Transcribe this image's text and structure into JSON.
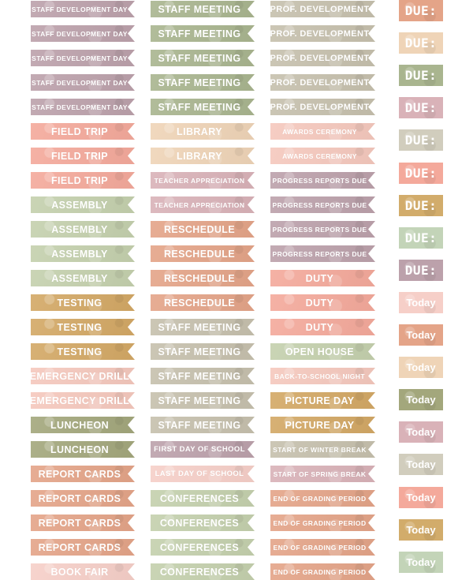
{
  "palette": {
    "mauve": "#bca1ab",
    "sage": "#a9b58f",
    "greige": "#c6c0ad",
    "peach": "#f4a99b",
    "blush": "#f5c8bd",
    "cream": "#efd4b7",
    "rose": "#d9b2b8",
    "lightsage": "#c4d0ad",
    "mustard": "#d3a865",
    "terracotta": "#e4a488",
    "palepink": "#f6cfc8",
    "mint": "#c3d4b8",
    "olive": "#a3a77c",
    "lightgreige": "#d1cdbd",
    "gold": "#d2ac6b"
  },
  "columns": [
    {
      "items": [
        {
          "label": "STAFF DEVELOPMENT DAY",
          "color": "mauve",
          "size": "xs"
        },
        {
          "label": "STAFF DEVELOPMENT DAY",
          "color": "mauve",
          "size": "xs"
        },
        {
          "label": "STAFF DEVELOPMENT DAY",
          "color": "mauve",
          "size": "xs"
        },
        {
          "label": "STAFF DEVELOPMENT DAY",
          "color": "mauve",
          "size": "xs"
        },
        {
          "label": "STAFF DEVELOPMENT DAY",
          "color": "mauve",
          "size": "xs"
        },
        {
          "label": "FIELD TRIP",
          "color": "peach",
          "size": "l"
        },
        {
          "label": "FIELD TRIP",
          "color": "peach",
          "size": "l"
        },
        {
          "label": "FIELD TRIP",
          "color": "peach",
          "size": "l"
        },
        {
          "label": "ASSEMBLY",
          "color": "lightsage",
          "size": "l"
        },
        {
          "label": "ASSEMBLY",
          "color": "lightsage",
          "size": "l"
        },
        {
          "label": "ASSEMBLY",
          "color": "lightsage",
          "size": "l"
        },
        {
          "label": "ASSEMBLY",
          "color": "lightsage",
          "size": "l"
        },
        {
          "label": "TESTING",
          "color": "mustard",
          "size": "l"
        },
        {
          "label": "TESTING",
          "color": "mustard",
          "size": "l"
        },
        {
          "label": "TESTING",
          "color": "mustard",
          "size": "l"
        },
        {
          "label": "EMERGENCY DRILL",
          "color": "blush",
          "size": "l"
        },
        {
          "label": "EMERGENCY DRILL",
          "color": "blush",
          "size": "l"
        },
        {
          "label": "LUNCHEON",
          "color": "olive",
          "size": "l"
        },
        {
          "label": "LUNCHEON",
          "color": "olive",
          "size": "l"
        },
        {
          "label": "REPORT CARDS",
          "color": "terracotta",
          "size": "l"
        },
        {
          "label": "REPORT CARDS",
          "color": "terracotta",
          "size": "l"
        },
        {
          "label": "REPORT CARDS",
          "color": "terracotta",
          "size": "l"
        },
        {
          "label": "REPORT CARDS",
          "color": "terracotta",
          "size": "l"
        },
        {
          "label": "BOOK FAIR",
          "color": "palepink",
          "size": "l"
        }
      ]
    },
    {
      "items": [
        {
          "label": "STAFF MEETING",
          "color": "sage",
          "size": "l"
        },
        {
          "label": "STAFF MEETING",
          "color": "sage",
          "size": "l"
        },
        {
          "label": "STAFF MEETING",
          "color": "sage",
          "size": "l"
        },
        {
          "label": "STAFF MEETING",
          "color": "sage",
          "size": "l"
        },
        {
          "label": "STAFF MEETING",
          "color": "sage",
          "size": "l"
        },
        {
          "label": "LIBRARY",
          "color": "cream",
          "size": "l"
        },
        {
          "label": "LIBRARY",
          "color": "cream",
          "size": "l"
        },
        {
          "label": "TEACHER APPRECIATION",
          "color": "rose",
          "size": "xs"
        },
        {
          "label": "TEACHER APPRECIATION",
          "color": "rose",
          "size": "xs"
        },
        {
          "label": "RESCHEDULE",
          "color": "terracotta",
          "size": "l"
        },
        {
          "label": "RESCHEDULE",
          "color": "terracotta",
          "size": "l"
        },
        {
          "label": "RESCHEDULE",
          "color": "terracotta",
          "size": "l"
        },
        {
          "label": "RESCHEDULE",
          "color": "terracotta",
          "size": "l"
        },
        {
          "label": "STAFF MEETING",
          "color": "greige",
          "size": "l"
        },
        {
          "label": "STAFF MEETING",
          "color": "greige",
          "size": "l"
        },
        {
          "label": "STAFF MEETING",
          "color": "greige",
          "size": "l"
        },
        {
          "label": "STAFF MEETING",
          "color": "greige",
          "size": "l"
        },
        {
          "label": "STAFF MEETING",
          "color": "greige",
          "size": "l"
        },
        {
          "label": "FIRST DAY OF SCHOOL",
          "color": "mauve",
          "size": "s"
        },
        {
          "label": "LAST DAY OF SCHOOL",
          "color": "palepink",
          "size": "s"
        },
        {
          "label": "CONFERENCES",
          "color": "lightsage",
          "size": "l"
        },
        {
          "label": "CONFERENCES",
          "color": "lightsage",
          "size": "l"
        },
        {
          "label": "CONFERENCES",
          "color": "lightsage",
          "size": "l"
        },
        {
          "label": "CONFERENCES",
          "color": "lightsage",
          "size": "l"
        }
      ]
    },
    {
      "items": [
        {
          "label": "PROF. DEVELOPMENT",
          "color": "greige",
          "size": "m"
        },
        {
          "label": "PROF. DEVELOPMENT",
          "color": "greige",
          "size": "m"
        },
        {
          "label": "PROF. DEVELOPMENT",
          "color": "greige",
          "size": "m"
        },
        {
          "label": "PROF. DEVELOPMENT",
          "color": "greige",
          "size": "m"
        },
        {
          "label": "PROF. DEVELOPMENT",
          "color": "greige",
          "size": "m"
        },
        {
          "label": "AWARDS CEREMONY",
          "color": "blush",
          "size": "xs"
        },
        {
          "label": "AWARDS CEREMONY",
          "color": "blush",
          "size": "xs"
        },
        {
          "label": "PROGRESS REPORTS DUE",
          "color": "mauve",
          "size": "xs"
        },
        {
          "label": "PROGRESS REPORTS DUE",
          "color": "mauve",
          "size": "xs"
        },
        {
          "label": "PROGRESS REPORTS DUE",
          "color": "mauve",
          "size": "xs"
        },
        {
          "label": "PROGRESS REPORTS DUE",
          "color": "mauve",
          "size": "xs"
        },
        {
          "label": "DUTY",
          "color": "peach",
          "size": "l"
        },
        {
          "label": "DUTY",
          "color": "peach",
          "size": "l"
        },
        {
          "label": "DUTY",
          "color": "peach",
          "size": "l"
        },
        {
          "label": "OPEN HOUSE",
          "color": "lightsage",
          "size": "l"
        },
        {
          "label": "BACK-TO-SCHOOL NIGHT",
          "color": "blush",
          "size": "xs"
        },
        {
          "label": "PICTURE DAY",
          "color": "mustard",
          "size": "l"
        },
        {
          "label": "PICTURE DAY",
          "color": "mustard",
          "size": "l"
        },
        {
          "label": "START OF WINTER BREAK",
          "color": "greige",
          "size": "xs"
        },
        {
          "label": "START OF SPRING BREAK",
          "color": "rose",
          "size": "xs"
        },
        {
          "label": "END OF GRADING PERIOD",
          "color": "terracotta",
          "size": "xs"
        },
        {
          "label": "END OF GRADING PERIOD",
          "color": "terracotta",
          "size": "xs"
        },
        {
          "label": "END OF GRADING PERIOD",
          "color": "terracotta",
          "size": "xs"
        },
        {
          "label": "END OF GRADING PERIOD",
          "color": "terracotta",
          "size": "xs"
        }
      ]
    }
  ],
  "tags": [
    {
      "label": "DUE:",
      "color": "terracotta",
      "kind": "due"
    },
    {
      "label": "DUE:",
      "color": "cream",
      "kind": "due"
    },
    {
      "label": "DUE:",
      "color": "sage",
      "kind": "due"
    },
    {
      "label": "DUE:",
      "color": "rose",
      "kind": "due"
    },
    {
      "label": "DUE:",
      "color": "lightgreige",
      "kind": "due"
    },
    {
      "label": "DUE:",
      "color": "peach",
      "kind": "due"
    },
    {
      "label": "DUE:",
      "color": "gold",
      "kind": "due"
    },
    {
      "label": "DUE:",
      "color": "mint",
      "kind": "due"
    },
    {
      "label": "DUE:",
      "color": "mauve",
      "kind": "due"
    },
    {
      "label": "Today",
      "color": "palepink",
      "kind": "today"
    },
    {
      "label": "Today",
      "color": "terracotta",
      "kind": "today"
    },
    {
      "label": "Today",
      "color": "cream",
      "kind": "today"
    },
    {
      "label": "Today",
      "color": "olive",
      "kind": "today"
    },
    {
      "label": "Today",
      "color": "rose",
      "kind": "today"
    },
    {
      "label": "Today",
      "color": "lightgreige",
      "kind": "today"
    },
    {
      "label": "Today",
      "color": "peach",
      "kind": "today"
    },
    {
      "label": "Today",
      "color": "gold",
      "kind": "today"
    },
    {
      "label": "Today",
      "color": "mint",
      "kind": "today"
    }
  ]
}
